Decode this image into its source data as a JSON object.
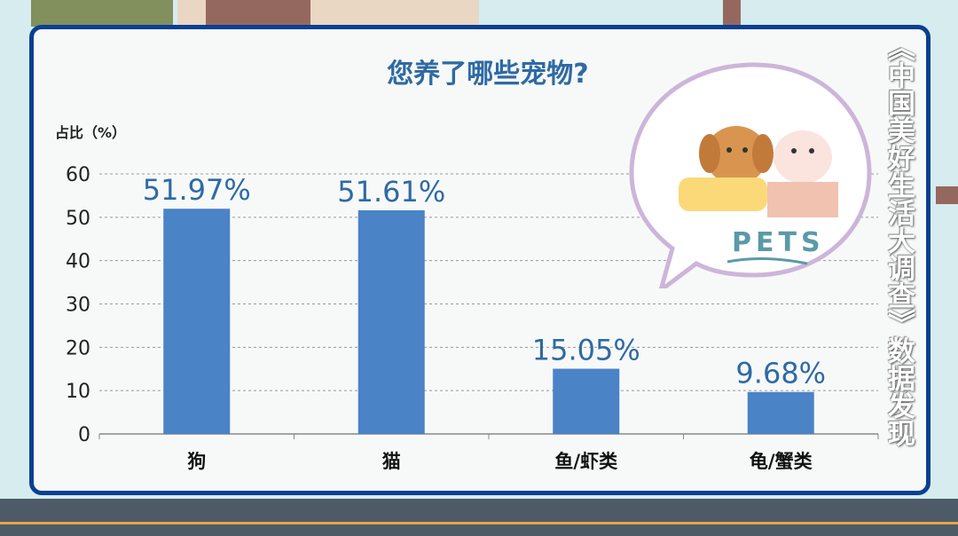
{
  "watermark": "《中国美好生活大调查》数据发现",
  "illustration": {
    "label": "PETS"
  },
  "chart_data": {
    "type": "bar",
    "title": "您养了哪些宠物?",
    "ylabel": "占比（%）",
    "xlabel": "",
    "categories": [
      "狗",
      "猫",
      "鱼/虾类",
      "龟/蟹类"
    ],
    "values": [
      51.97,
      51.61,
      15.05,
      9.68
    ],
    "data_labels": [
      "51.97%",
      "51.61%",
      "15.05%",
      "9.68%"
    ],
    "ylim": [
      0,
      60
    ],
    "yticks": [
      0,
      10,
      20,
      30,
      40,
      50,
      60
    ],
    "grid": true,
    "bar_color": "#4a83c6",
    "label_color": "#2f6aa3"
  }
}
